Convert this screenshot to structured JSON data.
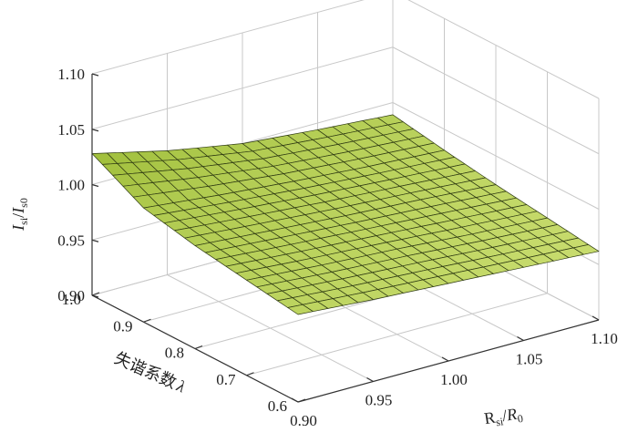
{
  "chart_data": {
    "type": "surface3d",
    "title": "",
    "zlabel": {
      "main": "I",
      "sub1": "si",
      "mid": "/",
      "main2": "I",
      "sub2": "s0"
    },
    "xlabel": {
      "main": "R",
      "sub1": "si",
      "mid": "/",
      "main2": "R",
      "sub2": "0"
    },
    "ylabel": {
      "text": "失谐系数",
      "symbol": "λ"
    },
    "x_ticks": [
      "0.90",
      "0.95",
      "1.00",
      "1.05",
      "1.10"
    ],
    "y_ticks": [
      "0.6",
      "0.7",
      "0.8",
      "0.9",
      "1.0"
    ],
    "z_ticks": [
      "0.90",
      "0.95",
      "1.00",
      "1.05",
      "1.10"
    ],
    "xlim": [
      0.9,
      1.1
    ],
    "ylim": [
      0.6,
      1.0
    ],
    "zlim": [
      0.9,
      1.1
    ],
    "grid": true,
    "surface_color": "#c8dc6e",
    "surface_color_dark": "#9fbe3a",
    "x_values": [
      0.9,
      0.95,
      1.0,
      1.05,
      1.1
    ],
    "y_values": [
      0.6,
      0.7,
      0.8,
      0.9,
      1.0
    ],
    "z_values": [
      [
        0.979,
        0.974,
        0.97,
        0.966,
        0.962
      ],
      [
        0.986,
        0.981,
        0.977,
        0.972,
        0.968
      ],
      [
        0.993,
        0.988,
        0.983,
        0.979,
        0.974
      ],
      [
        1.003,
        0.996,
        0.99,
        0.985,
        0.981
      ],
      [
        1.028,
        1.012,
        1.0,
        0.994,
        0.989
      ]
    ]
  }
}
